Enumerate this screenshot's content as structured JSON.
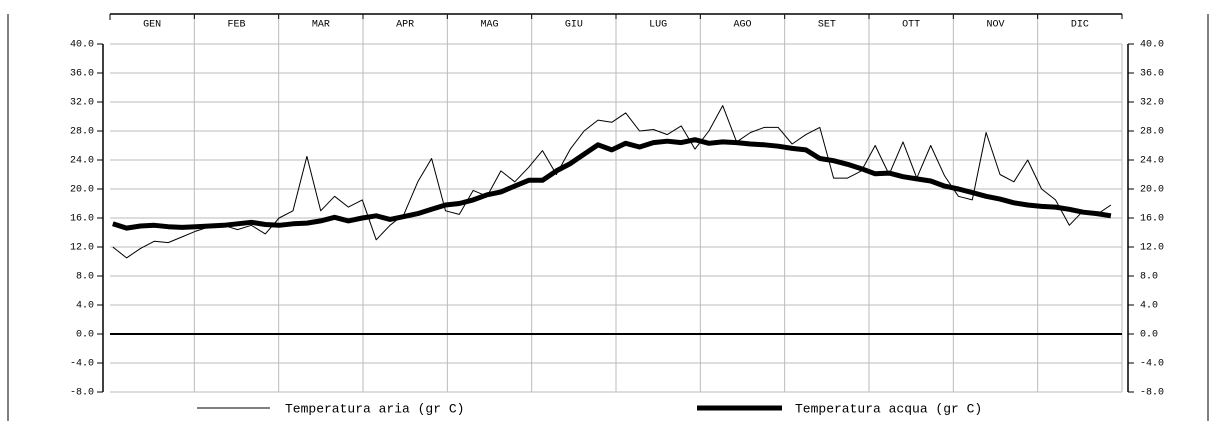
{
  "chart_data": {
    "type": "line",
    "categories": [
      "GEN",
      "FEB",
      "MAR",
      "APR",
      "MAG",
      "GIU",
      "LUG",
      "AGO",
      "SET",
      "OTT",
      "NOV",
      "DIC"
    ],
    "x": [
      1,
      6,
      11,
      16,
      21,
      26,
      31,
      36,
      41,
      46,
      51,
      56,
      61,
      66,
      71,
      76,
      81,
      86,
      91,
      96,
      101,
      106,
      111,
      116,
      121,
      126,
      131,
      136,
      141,
      146,
      151,
      156,
      161,
      166,
      171,
      176,
      181,
      186,
      191,
      196,
      201,
      206,
      211,
      216,
      221,
      226,
      231,
      236,
      241,
      246,
      251,
      256,
      261,
      266,
      271,
      276,
      281,
      286,
      291,
      296,
      301,
      306,
      311,
      316,
      321,
      326,
      331,
      336,
      341,
      346,
      351,
      356,
      361
    ],
    "xlim": [
      0,
      365
    ],
    "series": [
      {
        "name": "Temperatura aria (gr C)",
        "color": "#000000",
        "values": [
          12,
          10.5,
          11.8,
          12.8,
          12.6,
          13.4,
          14.2,
          14.8,
          15,
          14.4,
          15,
          13.8,
          16,
          17,
          24.5,
          17,
          19,
          17.5,
          18.5,
          13,
          15,
          16.5,
          21,
          24.2,
          17,
          16.5,
          19.8,
          19,
          22.5,
          21,
          23,
          25.3,
          22,
          25.5,
          28,
          29.5,
          29.2,
          30.5,
          28,
          28.2,
          27.5,
          28.7,
          25.5,
          28,
          31.5,
          26.5,
          27.8,
          28.5,
          28.5,
          26.2,
          27.5,
          28.5,
          21.5,
          21.5,
          22.5,
          26,
          22,
          26.5,
          21.5,
          26,
          21.8,
          19,
          18.5,
          27.8,
          22,
          21,
          24,
          20,
          18.5,
          15,
          17,
          16.5,
          17.8
        ]
      },
      {
        "name": "Temperatura acqua (gr C)",
        "color": "#000000",
        "values": [
          15.2,
          14.6,
          14.9,
          15,
          14.8,
          14.7,
          14.8,
          14.9,
          15,
          15.2,
          15.4,
          15.1,
          15,
          15.2,
          15.3,
          15.6,
          16.1,
          15.6,
          16,
          16.3,
          15.8,
          16.2,
          16.6,
          17.2,
          17.8,
          18,
          18.5,
          19.2,
          19.6,
          20.4,
          21.2,
          21.2,
          22.5,
          23.5,
          24.8,
          26.1,
          25.4,
          26.3,
          25.8,
          26.4,
          26.6,
          26.4,
          26.8,
          26.3,
          26.5,
          26.4,
          26.2,
          26.1,
          25.9,
          25.6,
          25.4,
          24.2,
          23.9,
          23.4,
          22.8,
          22.1,
          22.2,
          21.7,
          21.4,
          21.1,
          20.4,
          20,
          19.5,
          19,
          18.6,
          18.1,
          17.8,
          17.6,
          17.5,
          17.2,
          16.8,
          16.6,
          16.3
        ]
      }
    ],
    "ylim": [
      -8,
      40
    ],
    "yticks": [
      {
        "value": -8,
        "label": "-8.0"
      },
      {
        "value": -4,
        "label": "-4.0"
      },
      {
        "value": 0,
        "label": "0.0"
      },
      {
        "value": 4,
        "label": "4.0"
      },
      {
        "value": 8,
        "label": "8.0"
      },
      {
        "value": 12,
        "label": "12.0"
      },
      {
        "value": 16,
        "label": "16.0"
      },
      {
        "value": 20,
        "label": "20.0"
      },
      {
        "value": 24,
        "label": "24.0"
      },
      {
        "value": 28,
        "label": "28.0"
      },
      {
        "value": 32,
        "label": "32.0"
      },
      {
        "value": 36,
        "label": "36.0"
      },
      {
        "value": 40,
        "label": "40.0"
      }
    ],
    "grid": true
  }
}
